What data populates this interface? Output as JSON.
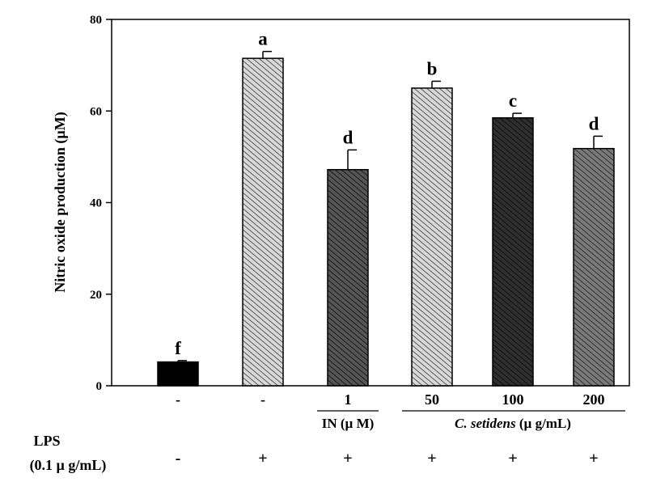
{
  "chart_data": {
    "type": "bar",
    "ylabel": "Nitric oxide production (µM)",
    "ylim": [
      0,
      80
    ],
    "yticks": [
      0,
      20,
      40,
      60,
      80
    ],
    "grid": false,
    "categories": [
      "-",
      "-",
      "1",
      "50",
      "100",
      "200"
    ],
    "values": [
      5.2,
      71.5,
      47.2,
      65.0,
      58.5,
      51.8
    ],
    "errors": [
      0.3,
      1.5,
      4.3,
      1.5,
      1.0,
      2.7
    ],
    "letters": [
      "f",
      "a",
      "d",
      "b",
      "c",
      "d"
    ],
    "fills": [
      "solid-black",
      "hatch-light",
      "hatch-dark",
      "hatch-light",
      "hatch-darkest",
      "hatch-medium"
    ],
    "groups": [
      {
        "label": "IN (µ M)",
        "categories": [
          2
        ]
      },
      {
        "label_italic": "C. setidens",
        "label_rest": " (µ g/mL)",
        "categories": [
          3,
          4,
          5
        ]
      }
    ],
    "lps_row": {
      "label_line1": "LPS",
      "label_line2": "(0.1 µ g/mL)",
      "signs": [
        "-",
        "+",
        "+",
        "+",
        "+",
        "+"
      ]
    }
  },
  "colors": {
    "bar_black": "#000000",
    "hatch_light_bg": "#d9d9d9",
    "hatch_dark_bg": "#555555",
    "hatch_darkest_bg": "#2e2e2e",
    "hatch_medium_bg": "#7a7a7a"
  }
}
